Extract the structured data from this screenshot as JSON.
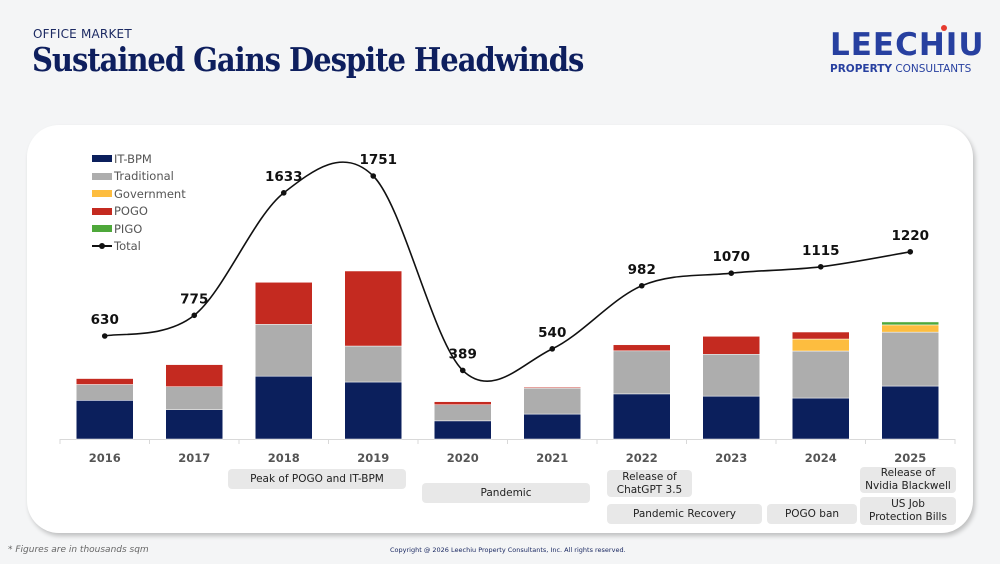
{
  "header": {
    "kicker": "OFFICE MARKET",
    "title": "Sustained Gains Despite Headwinds"
  },
  "logo": {
    "name": "LEECHIU",
    "sub_bold": "PROPERTY",
    "sub_regular": "CONSULTANTS",
    "color": "#2740a0",
    "dot_color": "#e63a2e"
  },
  "chart_data": {
    "type": "bar",
    "stacked": true,
    "title": "Sustained Gains Despite Headwinds",
    "xlabel": "",
    "ylabel": "",
    "units": "thousands sqm",
    "categories": [
      "2016",
      "2017",
      "2018",
      "2019",
      "2020",
      "2021",
      "2022",
      "2023",
      "2024",
      "2025"
    ],
    "series": [
      {
        "name": "IT-BPM",
        "color": "#0b1f5c",
        "values": [
          403,
          305,
          655,
          594,
          189,
          260,
          470,
          447,
          427,
          552
        ]
      },
      {
        "name": "Traditional",
        "color": "#adadad",
        "values": [
          165,
          240,
          540,
          375,
          168,
          270,
          449,
          436,
          490,
          562
        ]
      },
      {
        "name": "Government",
        "color": "#fdbd3f",
        "values": [
          0,
          0,
          0,
          0,
          0,
          0,
          0,
          0,
          125,
          75
        ]
      },
      {
        "name": "POGO",
        "color": "#c42a20",
        "values": [
          62,
          230,
          438,
          782,
          32,
          10,
          63,
          187,
          73,
          0
        ]
      },
      {
        "name": "PIGO",
        "color": "#4ea83a",
        "values": [
          0,
          0,
          0,
          0,
          0,
          0,
          0,
          0,
          0,
          31
        ]
      }
    ],
    "line": {
      "name": "Total",
      "color": "#111111",
      "values": [
        630,
        775,
        1633,
        1751,
        389,
        540,
        982,
        1070,
        1115,
        1220
      ]
    },
    "legend_position": "top-left",
    "grid": false
  },
  "legend": {
    "items": [
      {
        "label": "IT-BPM",
        "color": "#0b1f5c"
      },
      {
        "label": "Traditional",
        "color": "#adadad"
      },
      {
        "label": "Government",
        "color": "#fdbd3f"
      },
      {
        "label": "POGO",
        "color": "#c42a20"
      },
      {
        "label": "PIGO",
        "color": "#4ea83a"
      },
      {
        "label": "Total",
        "type": "line"
      }
    ]
  },
  "events": [
    {
      "label": "Peak of POGO and IT-BPM"
    },
    {
      "label": "Pandemic"
    },
    {
      "label": "Release of ChatGPT 3.5"
    },
    {
      "label": "Pandemic Recovery"
    },
    {
      "label": "POGO ban"
    },
    {
      "label": "Release of Nvidia Blackwell"
    },
    {
      "label": "US Job Protection Bills"
    }
  ],
  "footer": {
    "note": "* Figures are in thousands sqm",
    "copyright": "Copyright @ 2026 Leechiu Property Consultants, Inc. All rights reserved."
  }
}
